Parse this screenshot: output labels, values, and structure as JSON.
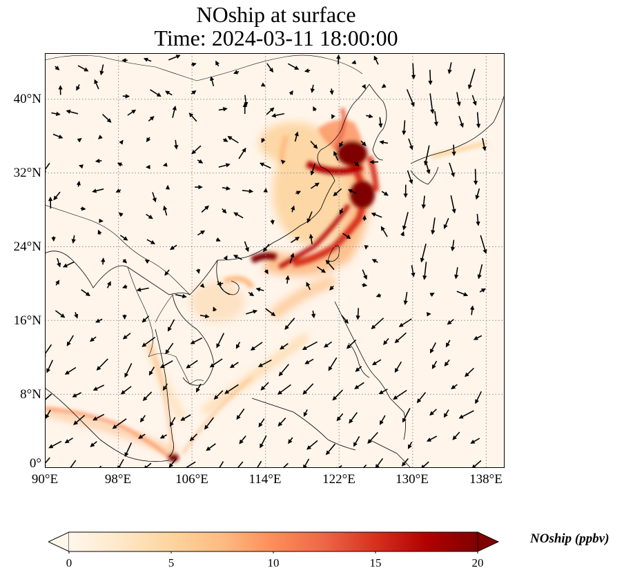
{
  "title": {
    "line1": "NOship at surface",
    "line2": "Time: 2024-03-11 18:00:00"
  },
  "map": {
    "lon_range": [
      90,
      140
    ],
    "lat_range": [
      0,
      45
    ],
    "lon_ticks": [
      "90°E",
      "98°E",
      "106°E",
      "114°E",
      "122°E",
      "130°E",
      "138°E"
    ],
    "lat_ticks": [
      "0°",
      "8°N",
      "16°N",
      "24°N",
      "32°N",
      "40°N"
    ],
    "gridlines": true,
    "background_color": "#fff5eb",
    "features": [
      "coastlines",
      "country borders",
      "NOship concentration field",
      "wind vectors"
    ]
  },
  "colorbar": {
    "label": "NOship (ppbv)",
    "ticks": [
      "0",
      "5",
      "10",
      "15",
      "20"
    ],
    "min": 0,
    "max": 20,
    "extend": "both",
    "colormap": "OrRd",
    "colors": [
      "#fff7ec",
      "#fee8c8",
      "#fdd49e",
      "#fdbb84",
      "#fc8d59",
      "#ef6548",
      "#d7301f",
      "#b30000",
      "#7f0000"
    ]
  }
}
